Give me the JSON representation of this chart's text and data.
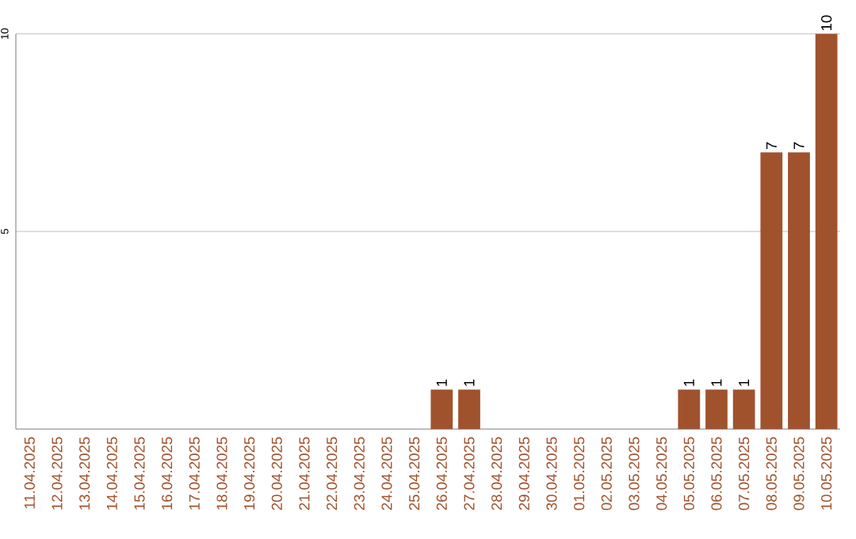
{
  "chart_data": {
    "type": "bar",
    "color": "#a0522d",
    "categories": [
      "11.04.2025",
      "12.04.2025",
      "13.04.2025",
      "14.04.2025",
      "15.04.2025",
      "16.04.2025",
      "17.04.2025",
      "18.04.2025",
      "19.04.2025",
      "20.04.2025",
      "21.04.2025",
      "22.04.2025",
      "23.04.2025",
      "24.04.2025",
      "25.04.2025",
      "26.04.2025",
      "27.04.2025",
      "28.04.2025",
      "29.04.2025",
      "30.04.2025",
      "01.05.2025",
      "02.05.2025",
      "03.05.2025",
      "04.05.2025",
      "05.05.2025",
      "06.05.2025",
      "07.05.2025",
      "08.05.2025",
      "09.05.2025",
      "10.05.2025"
    ],
    "values": [
      0,
      0,
      0,
      0,
      0,
      0,
      0,
      0,
      0,
      0,
      0,
      0,
      0,
      0,
      0,
      1,
      1,
      0,
      0,
      0,
      0,
      0,
      0,
      0,
      1,
      1,
      1,
      7,
      7,
      10
    ],
    "value_labels": [
      null,
      null,
      null,
      null,
      null,
      null,
      null,
      null,
      null,
      null,
      null,
      null,
      null,
      null,
      null,
      "1",
      "1",
      null,
      null,
      null,
      null,
      null,
      null,
      null,
      "1",
      "1",
      "1",
      "7",
      "7",
      "10"
    ],
    "ylim": [
      0,
      10
    ],
    "yticks": [
      5,
      10
    ],
    "grid": "y"
  }
}
